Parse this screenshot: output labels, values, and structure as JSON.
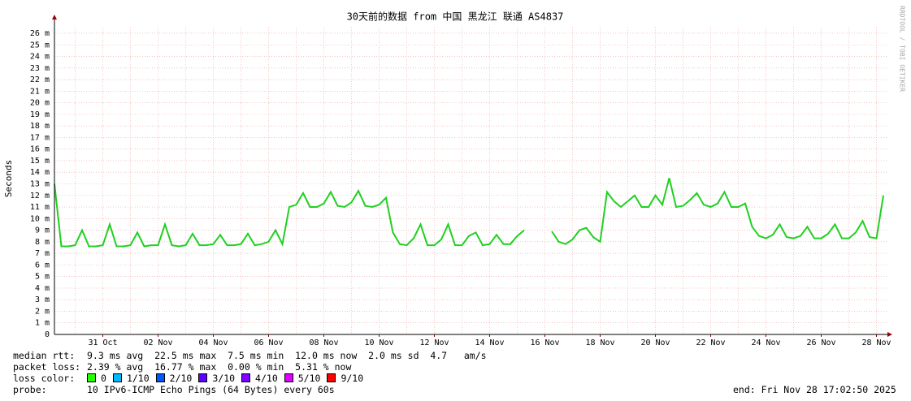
{
  "chart_data": {
    "type": "line",
    "title": "30天前的数据 from 中国 黑龙江 联通 AS4837",
    "y_label": "Seconds",
    "watermark": "RRDTOOL / TOBI OETIKER",
    "categories": [
      null,
      null,
      null,
      null,
      null,
      null,
      null,
      "31 Oct",
      null,
      null,
      null,
      null,
      null,
      null,
      null,
      "02 Nov",
      null,
      null,
      null,
      null,
      null,
      null,
      null,
      "04 Nov",
      null,
      null,
      null,
      null,
      null,
      null,
      null,
      "06 Nov",
      null,
      null,
      null,
      null,
      null,
      null,
      null,
      "08 Nov",
      null,
      null,
      null,
      null,
      null,
      null,
      null,
      "10 Nov",
      null,
      null,
      null,
      null,
      null,
      null,
      null,
      "12 Nov",
      null,
      null,
      null,
      null,
      null,
      null,
      null,
      "14 Nov",
      null,
      null,
      null,
      null,
      null,
      null,
      null,
      "16 Nov",
      null,
      null,
      null,
      null,
      null,
      null,
      null,
      "18 Nov",
      null,
      null,
      null,
      null,
      null,
      null,
      null,
      "20 Nov",
      null,
      null,
      null,
      null,
      null,
      null,
      null,
      "22 Nov",
      null,
      null,
      null,
      null,
      null,
      null,
      null,
      "24 Nov",
      null,
      null,
      null,
      null,
      null,
      null,
      null,
      "26 Nov",
      null,
      null,
      null,
      null,
      null,
      null,
      null,
      "28 Nov",
      null
    ],
    "series": [
      {
        "color": "#20d020",
        "values": [
          0.013,
          0.0076,
          0.0076,
          0.0077,
          0.009,
          0.0076,
          0.0076,
          0.0077,
          0.0095,
          0.0076,
          0.0076,
          0.0077,
          0.0088,
          0.0076,
          0.0077,
          0.0077,
          0.0095,
          0.0077,
          0.0076,
          0.0077,
          0.0087,
          0.0077,
          0.0077,
          0.0078,
          0.0086,
          0.0077,
          0.0077,
          0.0078,
          0.0087,
          0.0077,
          0.0078,
          0.008,
          0.009,
          0.0078,
          0.011,
          0.0112,
          0.0122,
          0.011,
          0.011,
          0.0113,
          0.0123,
          0.0111,
          0.011,
          0.0114,
          0.0124,
          0.0111,
          0.011,
          0.0112,
          0.0118,
          0.0088,
          0.0078,
          0.0077,
          0.0083,
          0.0095,
          0.0077,
          0.0077,
          0.0082,
          0.0095,
          0.0077,
          0.0077,
          0.0085,
          0.0088,
          0.0077,
          0.0078,
          0.0086,
          0.0078,
          0.0078,
          0.0085,
          0.009,
          null,
          null,
          null,
          0.0089,
          0.008,
          0.0078,
          0.0082,
          0.009,
          0.0092,
          0.0084,
          0.008,
          0.0123,
          0.0115,
          0.011,
          0.0115,
          0.012,
          0.011,
          0.011,
          0.012,
          0.0112,
          0.0135,
          0.011,
          0.0111,
          0.0116,
          0.0122,
          0.0112,
          0.011,
          0.0113,
          0.0123,
          0.011,
          0.011,
          0.0113,
          0.0093,
          0.0085,
          0.0083,
          0.0086,
          0.0095,
          0.0084,
          0.0083,
          0.0085,
          0.0093,
          0.0083,
          0.0083,
          0.0087,
          0.0095,
          0.0083,
          0.0083,
          0.0088,
          0.0098,
          0.0084,
          0.0083,
          0.012
        ]
      }
    ],
    "ylim": [
      0,
      0.0265
    ],
    "yticks": [
      0,
      {
        "value": 0.001,
        "label": "1 m"
      },
      {
        "value": 0.002,
        "label": "2 m"
      },
      {
        "value": 0.003,
        "label": "3 m"
      },
      {
        "value": 0.004,
        "label": "4 m"
      },
      {
        "value": 0.005,
        "label": "5 m"
      },
      {
        "value": 0.006,
        "label": "6 m"
      },
      {
        "value": 0.007,
        "label": "7 m"
      },
      {
        "value": 0.008,
        "label": "8 m"
      },
      {
        "value": 0.009,
        "label": "9 m"
      },
      {
        "value": 0.01,
        "label": "10 m"
      },
      {
        "value": 0.011,
        "label": "11 m"
      },
      {
        "value": 0.012,
        "label": "12 m"
      },
      {
        "value": 0.013,
        "label": "13 m"
      },
      {
        "value": 0.014,
        "label": "14 m"
      },
      {
        "value": 0.015,
        "label": "15 m"
      },
      {
        "value": 0.016,
        "label": "16 m"
      },
      {
        "value": 0.017,
        "label": "17 m"
      },
      {
        "value": 0.018,
        "label": "18 m"
      },
      {
        "value": 0.019,
        "label": "19 m"
      },
      {
        "value": 0.02,
        "label": "20 m"
      },
      {
        "value": 0.021,
        "label": "21 m"
      },
      {
        "value": 0.022,
        "label": "22 m"
      },
      {
        "value": 0.023,
        "label": "23 m"
      },
      {
        "value": 0.024,
        "label": "24 m"
      },
      {
        "value": 0.025,
        "label": "25 m"
      },
      {
        "value": 0.026,
        "label": "26 m"
      }
    ],
    "grid": true
  },
  "stats": {
    "median_rtt": {
      "label": "median rtt:",
      "text": "9.3 ms avg  22.5 ms max  7.5 ms min  12.0 ms now  2.0 ms sd  4.7   am/s"
    },
    "packet_loss": {
      "label": "packet loss:",
      "text": "2.39 % avg  16.77 % max  0.00 % min  5.31 % now"
    }
  },
  "loss_color": {
    "label": "loss color:",
    "items": [
      {
        "label": "0",
        "color": "#26ff00"
      },
      {
        "label": "1/10",
        "color": "#00b8ff"
      },
      {
        "label": "2/10",
        "color": "#0059ff"
      },
      {
        "label": "3/10",
        "color": "#5e00ff"
      },
      {
        "label": "4/10",
        "color": "#7e00ff"
      },
      {
        "label": "5/10",
        "color": "#dd00ff"
      },
      {
        "label": "9/10",
        "color": "#ff0000"
      }
    ]
  },
  "probe": {
    "label": "probe:",
    "text": "10 IPv6-ICMP Echo Pings (64 Bytes) every 60s"
  },
  "end": "end: Fri Nov 28 17:02:50 2025"
}
